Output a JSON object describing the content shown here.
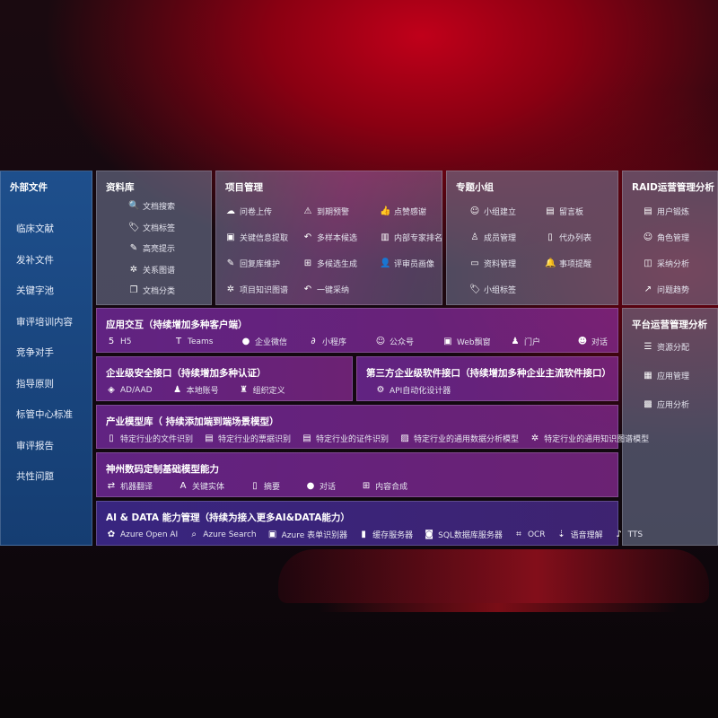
{
  "external": {
    "title": "外部文件",
    "items": [
      "临床文献",
      "发补文件",
      "关键字池",
      "审评培训内容",
      "竞争对手",
      "指导原则",
      "标管中心标准",
      "审评报告",
      "共性问题"
    ]
  },
  "library": {
    "title": "资料库",
    "items": [
      {
        "label": "文档搜索",
        "icon": "document-search-icon"
      },
      {
        "label": "文档标签",
        "icon": "tag-icon"
      },
      {
        "label": "高亮提示",
        "icon": "pen-icon"
      },
      {
        "label": "关系图谱",
        "icon": "graph-icon"
      },
      {
        "label": "文档分类",
        "icon": "document-copy-icon"
      }
    ]
  },
  "project": {
    "title": "项目管理",
    "items": [
      {
        "label": "问卷上传",
        "icon": "cloud-upload-icon"
      },
      {
        "label": "到期预警",
        "icon": "alarm-icon"
      },
      {
        "label": "点赞感谢",
        "icon": "thumbs-up-icon"
      },
      {
        "label": "关键信息提取",
        "icon": "window-icon"
      },
      {
        "label": "多样本候选",
        "icon": "reply-icon"
      },
      {
        "label": "内部专家排名",
        "icon": "ranking-icon"
      },
      {
        "label": "回复库维护",
        "icon": "edit-icon"
      },
      {
        "label": "多候选生成",
        "icon": "puzzle-icon"
      },
      {
        "label": "评审员画像",
        "icon": "user-icon"
      },
      {
        "label": "项目知识图谱",
        "icon": "graph-icon"
      },
      {
        "label": "一键采纳",
        "icon": "reply-icon"
      }
    ]
  },
  "group": {
    "title": "专题小组",
    "items": [
      {
        "label": "小组建立",
        "icon": "group-icon"
      },
      {
        "label": "留言板",
        "icon": "bbs-icon"
      },
      {
        "label": "成员管理",
        "icon": "user-add-icon"
      },
      {
        "label": "代办列表",
        "icon": "clipboard-icon"
      },
      {
        "label": "资料管理",
        "icon": "folder-icon"
      },
      {
        "label": "事项提醒",
        "icon": "bell-icon"
      },
      {
        "label": "小组标签",
        "icon": "tag-icon"
      }
    ]
  },
  "raid": {
    "title": "RAID运营管理分析",
    "items": [
      {
        "label": "用户锻炼",
        "icon": "id-card-icon"
      },
      {
        "label": "角色管理",
        "icon": "users-icon"
      },
      {
        "label": "采纳分析",
        "icon": "qa-icon"
      },
      {
        "label": "问题趋势",
        "icon": "trend-icon"
      }
    ]
  },
  "platform": {
    "title": "平台运营管理分析",
    "items": [
      {
        "label": "资源分配",
        "icon": "checklist-icon"
      },
      {
        "label": "应用管理",
        "icon": "apps-icon"
      },
      {
        "label": "应用分析",
        "icon": "analysis-icon"
      }
    ]
  },
  "app": {
    "title": "应用交互（持续增加多种客户端）",
    "items": [
      {
        "label": "H5",
        "icon": "html5-icon"
      },
      {
        "label": "Teams",
        "icon": "teams-icon"
      },
      {
        "label": "企业微信",
        "icon": "wechat-icon"
      },
      {
        "label": "小程序",
        "icon": "mini-program-icon"
      },
      {
        "label": "公众号",
        "icon": "official-account-icon"
      },
      {
        "label": "Web飘窗",
        "icon": "window-icon"
      },
      {
        "label": "门户",
        "icon": "portal-icon"
      },
      {
        "label": "对话",
        "icon": "chat-users-icon"
      }
    ]
  },
  "security": {
    "title": "企业级安全接口（持续增加多种认证）",
    "items": [
      {
        "label": "AD/AAD",
        "icon": "ad-icon"
      },
      {
        "label": "本地账号",
        "icon": "local-account-icon"
      },
      {
        "label": "组织定义",
        "icon": "org-icon"
      }
    ]
  },
  "thirdparty": {
    "title": "第三方企业级软件接口（持续增加多种企业主流软件接口）",
    "items": [
      {
        "label": "API自动化设计器",
        "icon": "api-gear-icon"
      }
    ]
  },
  "industry": {
    "title": "产业模型库（ 持续添加端到端场景模型）",
    "items": [
      {
        "label": "特定行业的文件识别",
        "icon": "file-icon"
      },
      {
        "label": "特定行业的票据识别",
        "icon": "receipt-icon"
      },
      {
        "label": "特定行业的证件识别",
        "icon": "id-card-icon"
      },
      {
        "label": "特定行业的通用数据分析模型",
        "icon": "chart-icon"
      },
      {
        "label": "特定行业的通用知识图谱模型",
        "icon": "graph-icon"
      }
    ]
  },
  "base": {
    "title": "神州数码定制基础模型能力",
    "items": [
      {
        "label": "机器翻译",
        "icon": "translate-icon"
      },
      {
        "label": "关键实体",
        "icon": "entity-icon"
      },
      {
        "label": "摘要",
        "icon": "document-icon"
      },
      {
        "label": "对话",
        "icon": "chat-icon"
      },
      {
        "label": "内容合成",
        "icon": "puzzle-icon"
      }
    ]
  },
  "ai": {
    "title": "AI & DATA 能力管理（持续为接入更多AI&DATA能力）",
    "items": [
      {
        "label": "Azure Open AI",
        "icon": "openai-icon"
      },
      {
        "label": "Azure Search",
        "icon": "search-doc-icon"
      },
      {
        "label": "Azure 表单识别器",
        "icon": "form-icon"
      },
      {
        "label": "缓存服务器",
        "icon": "cache-icon"
      },
      {
        "label": "SQL数据库服务器",
        "icon": "sql-icon"
      },
      {
        "label": "OCR",
        "icon": "ocr-icon"
      },
      {
        "label": "语音理解",
        "icon": "speech-icon"
      },
      {
        "label": "TTS",
        "icon": "tts-icon"
      }
    ]
  }
}
